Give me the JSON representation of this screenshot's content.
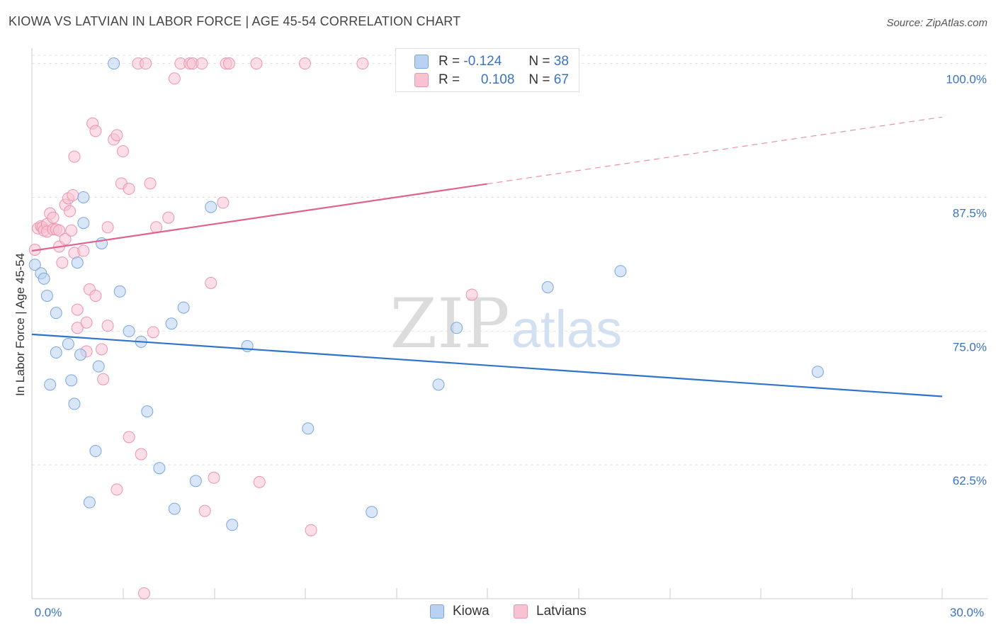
{
  "title": "KIOWA VS LATVIAN IN LABOR FORCE | AGE 45-54 CORRELATION CHART",
  "source": "Source: ZipAtlas.com",
  "watermark": {
    "zip": "ZIP",
    "atlas": "atlas"
  },
  "colors": {
    "kiowa_fill": "#b9d1f2",
    "kiowa_stroke": "#7aa6e0",
    "kiowa_line": "#2f74cc",
    "latvians_fill": "#f7c3d3",
    "latvians_stroke": "#ec93b0",
    "latvians_line": "#e0628e",
    "axis_label": "#3a73c4",
    "grid": "#e4e4e4"
  },
  "legend": {
    "rows": [
      {
        "r_label": "R =",
        "r_value": "-0.124",
        "n_label": "N =",
        "n_value": "38"
      },
      {
        "r_label": "R =",
        "r_value": "0.108",
        "n_label": "N =",
        "n_value": "67"
      }
    ]
  },
  "bottom_legend": {
    "kiowa": "Kiowa",
    "latvians": "Latvians"
  },
  "chart_data": {
    "type": "scatter",
    "title": "KIOWA VS LATVIAN IN LABOR FORCE | AGE 45-54 CORRELATION CHART",
    "xlabel": "",
    "ylabel": "In Labor Force | Age 45-54",
    "xlim": [
      0,
      30
    ],
    "ylim": [
      50,
      101.3
    ],
    "x_tick_labels": [
      "0.0%",
      "30.0%"
    ],
    "y_ticks": [
      62.5,
      75.0,
      87.5,
      100.0
    ],
    "y_tick_labels": [
      "62.5%",
      "75.0%",
      "87.5%",
      "100.0%"
    ],
    "series": [
      {
        "name": "Kiowa",
        "r": -0.124,
        "n": 38,
        "trend": {
          "x": [
            0,
            30
          ],
          "y": [
            74.7,
            68.9
          ],
          "dashed_from_x": null
        },
        "points": [
          [
            2.7,
            100.0
          ],
          [
            0.1,
            81.2
          ],
          [
            0.3,
            80.4
          ],
          [
            0.4,
            79.9
          ],
          [
            0.5,
            78.3
          ],
          [
            0.8,
            76.7
          ],
          [
            0.6,
            70.0
          ],
          [
            0.8,
            73.0
          ],
          [
            1.2,
            73.8
          ],
          [
            1.3,
            70.4
          ],
          [
            1.4,
            68.2
          ],
          [
            1.5,
            81.4
          ],
          [
            1.6,
            72.8
          ],
          [
            1.7,
            87.5
          ],
          [
            1.7,
            85.1
          ],
          [
            2.3,
            83.2
          ],
          [
            2.2,
            71.7
          ],
          [
            2.1,
            63.8
          ],
          [
            1.9,
            59.0
          ],
          [
            2.9,
            78.7
          ],
          [
            3.2,
            75.0
          ],
          [
            3.6,
            74.0
          ],
          [
            3.8,
            67.5
          ],
          [
            4.2,
            62.2
          ],
          [
            4.6,
            75.7
          ],
          [
            4.7,
            58.4
          ],
          [
            5.0,
            77.2
          ],
          [
            5.4,
            61.0
          ],
          [
            5.9,
            86.6
          ],
          [
            6.6,
            56.9
          ],
          [
            7.1,
            73.6
          ],
          [
            9.1,
            65.9
          ],
          [
            11.2,
            58.1
          ],
          [
            13.4,
            70.0
          ],
          [
            14.0,
            75.3
          ],
          [
            17.0,
            79.1
          ],
          [
            19.4,
            80.6
          ],
          [
            25.9,
            71.2
          ]
        ]
      },
      {
        "name": "Latvians",
        "r": 0.108,
        "n": 67,
        "trend": {
          "x": [
            0,
            30
          ],
          "y": [
            82.5,
            95.0
          ],
          "dashed_from_x": 15.0
        },
        "points": [
          [
            0.1,
            82.6
          ],
          [
            0.2,
            84.6
          ],
          [
            0.3,
            84.8
          ],
          [
            0.35,
            84.7
          ],
          [
            0.4,
            84.4
          ],
          [
            0.5,
            85.0
          ],
          [
            0.5,
            84.3
          ],
          [
            0.6,
            86.0
          ],
          [
            0.7,
            85.6
          ],
          [
            0.7,
            84.5
          ],
          [
            0.8,
            84.5
          ],
          [
            0.9,
            82.9
          ],
          [
            0.9,
            84.4
          ],
          [
            1.0,
            81.4
          ],
          [
            1.1,
            86.8
          ],
          [
            1.2,
            87.4
          ],
          [
            1.1,
            83.6
          ],
          [
            1.25,
            86.2
          ],
          [
            1.3,
            84.4
          ],
          [
            1.35,
            87.7
          ],
          [
            1.4,
            82.3
          ],
          [
            1.4,
            91.3
          ],
          [
            1.5,
            75.3
          ],
          [
            1.5,
            77.0
          ],
          [
            1.7,
            82.5
          ],
          [
            1.8,
            75.8
          ],
          [
            1.8,
            73.1
          ],
          [
            1.9,
            78.9
          ],
          [
            2.0,
            94.4
          ],
          [
            2.1,
            93.7
          ],
          [
            2.1,
            78.3
          ],
          [
            2.3,
            73.3
          ],
          [
            2.35,
            70.5
          ],
          [
            2.5,
            75.5
          ],
          [
            2.5,
            84.7
          ],
          [
            2.7,
            92.9
          ],
          [
            2.8,
            93.3
          ],
          [
            3.0,
            91.8
          ],
          [
            2.95,
            88.8
          ],
          [
            3.2,
            88.3
          ],
          [
            2.8,
            60.2
          ],
          [
            3.2,
            65.1
          ],
          [
            3.6,
            63.5
          ],
          [
            3.5,
            100.0
          ],
          [
            3.75,
            100.0
          ],
          [
            3.7,
            50.5
          ],
          [
            3.9,
            88.8
          ],
          [
            4.0,
            74.9
          ],
          [
            4.1,
            84.7
          ],
          [
            4.5,
            85.6
          ],
          [
            4.7,
            98.6
          ],
          [
            4.9,
            100.0
          ],
          [
            5.2,
            100.0
          ],
          [
            5.3,
            100.0
          ],
          [
            5.6,
            100.0
          ],
          [
            5.7,
            58.2
          ],
          [
            5.9,
            79.5
          ],
          [
            6.0,
            61.3
          ],
          [
            6.3,
            87.0
          ],
          [
            6.4,
            100.0
          ],
          [
            7.4,
            100.0
          ],
          [
            7.5,
            60.9
          ],
          [
            9.0,
            100.0
          ],
          [
            9.2,
            56.4
          ],
          [
            10.9,
            100.0
          ],
          [
            14.5,
            78.4
          ],
          [
            6.5,
            100.0
          ]
        ]
      }
    ]
  }
}
